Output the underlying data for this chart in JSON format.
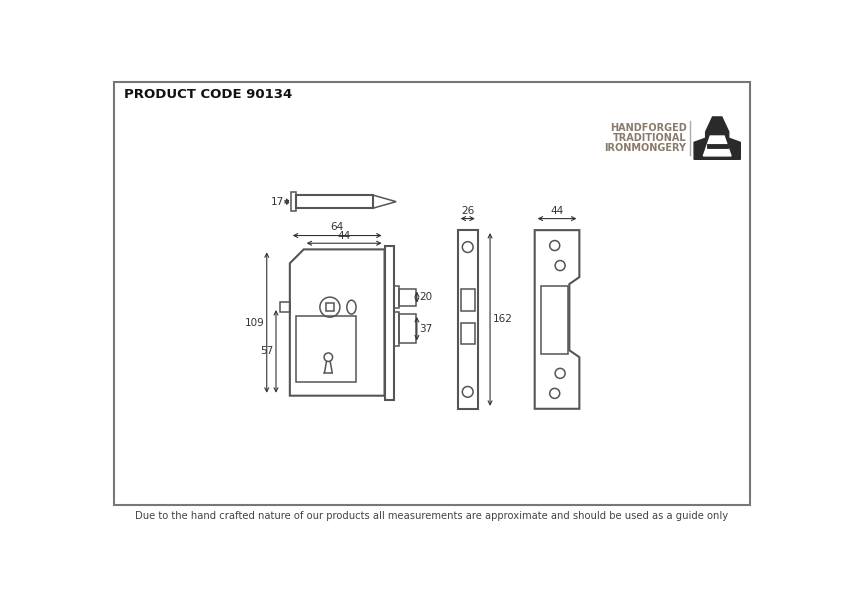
{
  "title": "PRODUCT CODE 90134",
  "footer": "Due to the hand crafted nature of our products all measurements are approximate and should be used as a guide only",
  "bg_color": "#ffffff",
  "line_color": "#555555",
  "dim_color": "#333333",
  "brand_lines": [
    "HANDFORGED",
    "TRADITIONAL",
    "IRONMONGERY"
  ],
  "brand_color": "#8a7a6a"
}
